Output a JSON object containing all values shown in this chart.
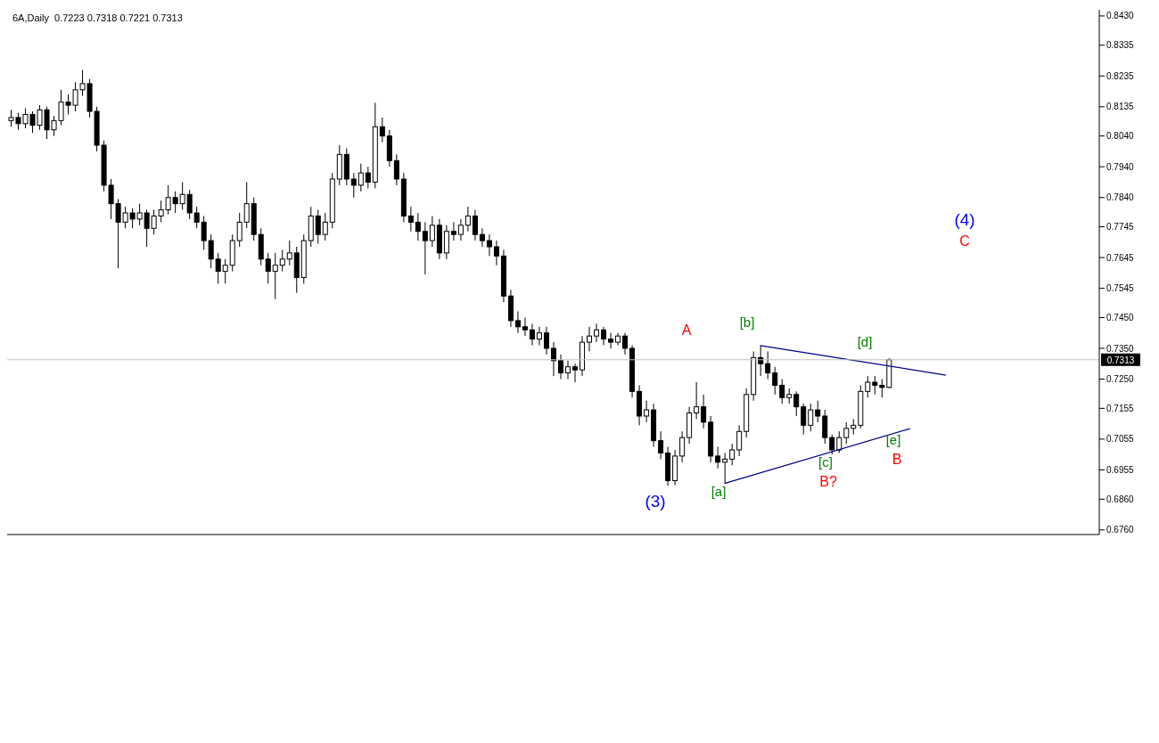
{
  "chart_data": {
    "type": "candlestick",
    "title": "6A,Daily  0.7223 0.7318 0.7221 0.7313",
    "color": "#000000",
    "categories": [
      null,
      null,
      null,
      null,
      null,
      null,
      null,
      null,
      null,
      null,
      null,
      null,
      null,
      null,
      null,
      null,
      null,
      null,
      null,
      null,
      null,
      null,
      null,
      null,
      null,
      null,
      null,
      null,
      null,
      null,
      null,
      null,
      null,
      null,
      null,
      null,
      null,
      null,
      null,
      null,
      null,
      null,
      null,
      null,
      null,
      null,
      null,
      null,
      null,
      null,
      null,
      null,
      null,
      null,
      null,
      null,
      null,
      null,
      null,
      null,
      null,
      null,
      null,
      null,
      null,
      null,
      null,
      null,
      null,
      null,
      null,
      null,
      null,
      null,
      null,
      null,
      null,
      null,
      null,
      null,
      null,
      null,
      null,
      null,
      null,
      null,
      null,
      null,
      null,
      null,
      null,
      null,
      null,
      null,
      null,
      null,
      null,
      null,
      null,
      null,
      null,
      null,
      null,
      null,
      null,
      null,
      null,
      null,
      null,
      null,
      null,
      null,
      null,
      null,
      null,
      null,
      null,
      null,
      null,
      null,
      null,
      null,
      null,
      null,
      null,
      null,
      null,
      null,
      null,
      null,
      null,
      null,
      null,
      null,
      null,
      null,
      null,
      null,
      null,
      null,
      null,
      null,
      null,
      null,
      null,
      null,
      null,
      null,
      null,
      null,
      null,
      null,
      null
    ],
    "ohlc": [
      [
        0.809,
        0.8125,
        0.807,
        0.81
      ],
      [
        0.81,
        0.8115,
        0.806,
        0.808
      ],
      [
        0.808,
        0.813,
        0.8065,
        0.811
      ],
      [
        0.811,
        0.812,
        0.805,
        0.8075
      ],
      [
        0.8075,
        0.814,
        0.806,
        0.8125
      ],
      [
        0.8125,
        0.8135,
        0.803,
        0.806
      ],
      [
        0.806,
        0.8105,
        0.804,
        0.809
      ],
      [
        0.809,
        0.819,
        0.8075,
        0.815
      ],
      [
        0.815,
        0.8175,
        0.811,
        0.814
      ],
      [
        0.814,
        0.8215,
        0.812,
        0.819
      ],
      [
        0.819,
        0.8255,
        0.817,
        0.821
      ],
      [
        0.821,
        0.8225,
        0.81,
        0.812
      ],
      [
        0.812,
        0.8135,
        0.799,
        0.801
      ],
      [
        0.801,
        0.8025,
        0.786,
        0.788
      ],
      [
        0.788,
        0.79,
        0.777,
        0.782
      ],
      [
        0.782,
        0.7835,
        0.761,
        0.776
      ],
      [
        0.776,
        0.781,
        0.774,
        0.779
      ],
      [
        0.779,
        0.7805,
        0.774,
        0.777
      ],
      [
        0.777,
        0.782,
        0.775,
        0.779
      ],
      [
        0.779,
        0.78,
        0.768,
        0.774
      ],
      [
        0.774,
        0.78,
        0.772,
        0.778
      ],
      [
        0.778,
        0.783,
        0.776,
        0.78
      ],
      [
        0.78,
        0.788,
        0.7785,
        0.784
      ],
      [
        0.784,
        0.786,
        0.779,
        0.782
      ],
      [
        0.782,
        0.789,
        0.78,
        0.785
      ],
      [
        0.785,
        0.7865,
        0.777,
        0.779
      ],
      [
        0.779,
        0.781,
        0.774,
        0.776
      ],
      [
        0.776,
        0.778,
        0.767,
        0.77
      ],
      [
        0.77,
        0.772,
        0.761,
        0.764
      ],
      [
        0.764,
        0.766,
        0.756,
        0.76
      ],
      [
        0.76,
        0.764,
        0.756,
        0.762
      ],
      [
        0.762,
        0.772,
        0.76,
        0.77
      ],
      [
        0.77,
        0.779,
        0.768,
        0.776
      ],
      [
        0.776,
        0.789,
        0.774,
        0.782
      ],
      [
        0.782,
        0.784,
        0.77,
        0.772
      ],
      [
        0.772,
        0.774,
        0.762,
        0.764
      ],
      [
        0.764,
        0.766,
        0.756,
        0.76
      ],
      [
        0.76,
        0.766,
        0.751,
        0.762
      ],
      [
        0.762,
        0.767,
        0.76,
        0.764
      ],
      [
        0.764,
        0.77,
        0.762,
        0.766
      ],
      [
        0.766,
        0.768,
        0.753,
        0.758
      ],
      [
        0.758,
        0.772,
        0.756,
        0.77
      ],
      [
        0.77,
        0.781,
        0.768,
        0.778
      ],
      [
        0.778,
        0.78,
        0.769,
        0.772
      ],
      [
        0.772,
        0.779,
        0.77,
        0.776
      ],
      [
        0.776,
        0.792,
        0.774,
        0.79
      ],
      [
        0.79,
        0.801,
        0.788,
        0.798
      ],
      [
        0.798,
        0.8,
        0.788,
        0.79
      ],
      [
        0.79,
        0.792,
        0.784,
        0.788
      ],
      [
        0.788,
        0.795,
        0.786,
        0.792
      ],
      [
        0.792,
        0.794,
        0.787,
        0.789
      ],
      [
        0.789,
        0.8148,
        0.787,
        0.807
      ],
      [
        0.807,
        0.81,
        0.802,
        0.804
      ],
      [
        0.804,
        0.806,
        0.794,
        0.796
      ],
      [
        0.796,
        0.798,
        0.788,
        0.79
      ],
      [
        0.79,
        0.792,
        0.776,
        0.778
      ],
      [
        0.778,
        0.781,
        0.773,
        0.776
      ],
      [
        0.776,
        0.779,
        0.77,
        0.773
      ],
      [
        0.773,
        0.776,
        0.759,
        0.77
      ],
      [
        0.77,
        0.778,
        0.768,
        0.775
      ],
      [
        0.775,
        0.777,
        0.764,
        0.766
      ],
      [
        0.766,
        0.775,
        0.764,
        0.773
      ],
      [
        0.773,
        0.776,
        0.77,
        0.772
      ],
      [
        0.772,
        0.777,
        0.77,
        0.775
      ],
      [
        0.775,
        0.781,
        0.773,
        0.778
      ],
      [
        0.778,
        0.78,
        0.77,
        0.772
      ],
      [
        0.772,
        0.774,
        0.768,
        0.77
      ],
      [
        0.77,
        0.772,
        0.765,
        0.768
      ],
      [
        0.768,
        0.77,
        0.762,
        0.765
      ],
      [
        0.765,
        0.767,
        0.75,
        0.752
      ],
      [
        0.752,
        0.754,
        0.742,
        0.744
      ],
      [
        0.744,
        0.747,
        0.74,
        0.742
      ],
      [
        0.742,
        0.745,
        0.739,
        0.741
      ],
      [
        0.741,
        0.743,
        0.736,
        0.738
      ],
      [
        0.738,
        0.742,
        0.736,
        0.74
      ],
      [
        0.74,
        0.742,
        0.733,
        0.735
      ],
      [
        0.735,
        0.737,
        0.726,
        0.731
      ],
      [
        0.731,
        0.733,
        0.725,
        0.727
      ],
      [
        0.727,
        0.731,
        0.725,
        0.729
      ],
      [
        0.729,
        0.73,
        0.724,
        0.728
      ],
      [
        0.728,
        0.739,
        0.726,
        0.737
      ],
      [
        0.737,
        0.742,
        0.734,
        0.739
      ],
      [
        0.739,
        0.743,
        0.737,
        0.741
      ],
      [
        0.741,
        0.742,
        0.736,
        0.738
      ],
      [
        0.738,
        0.74,
        0.735,
        0.737
      ],
      [
        0.737,
        0.74,
        0.736,
        0.739
      ],
      [
        0.739,
        0.74,
        0.733,
        0.735
      ],
      [
        0.735,
        0.736,
        0.719,
        0.721
      ],
      [
        0.721,
        0.723,
        0.71,
        0.713
      ],
      [
        0.713,
        0.718,
        0.711,
        0.715
      ],
      [
        0.715,
        0.717,
        0.703,
        0.705
      ],
      [
        0.705,
        0.708,
        0.699,
        0.701
      ],
      [
        0.701,
        0.703,
        0.6903,
        0.692
      ],
      [
        0.692,
        0.702,
        0.6905,
        0.7
      ],
      [
        0.7,
        0.708,
        0.698,
        0.706
      ],
      [
        0.706,
        0.716,
        0.704,
        0.714
      ],
      [
        0.714,
        0.724,
        0.712,
        0.716
      ],
      [
        0.716,
        0.72,
        0.709,
        0.711
      ],
      [
        0.711,
        0.713,
        0.698,
        0.7
      ],
      [
        0.7,
        0.703,
        0.696,
        0.698
      ],
      [
        0.698,
        0.701,
        0.6911,
        0.699
      ],
      [
        0.699,
        0.704,
        0.697,
        0.702
      ],
      [
        0.702,
        0.71,
        0.7,
        0.708
      ],
      [
        0.708,
        0.722,
        0.706,
        0.72
      ],
      [
        0.72,
        0.734,
        0.718,
        0.732
      ],
      [
        0.732,
        0.7359,
        0.726,
        0.73
      ],
      [
        0.73,
        0.734,
        0.725,
        0.727
      ],
      [
        0.727,
        0.729,
        0.72,
        0.723
      ],
      [
        0.723,
        0.725,
        0.717,
        0.719
      ],
      [
        0.719,
        0.722,
        0.717,
        0.72
      ],
      [
        0.72,
        0.721,
        0.713,
        0.716
      ],
      [
        0.716,
        0.717,
        0.707,
        0.71
      ],
      [
        0.71,
        0.717,
        0.708,
        0.715
      ],
      [
        0.715,
        0.718,
        0.711,
        0.713
      ],
      [
        0.713,
        0.715,
        0.704,
        0.706
      ],
      [
        0.706,
        0.707,
        0.7005,
        0.702
      ],
      [
        0.702,
        0.708,
        0.701,
        0.706
      ],
      [
        0.706,
        0.711,
        0.704,
        0.709
      ],
      [
        0.709,
        0.712,
        0.707,
        0.71
      ],
      [
        0.71,
        0.723,
        0.709,
        0.721
      ],
      [
        0.721,
        0.726,
        0.719,
        0.724
      ],
      [
        0.724,
        0.726,
        0.72,
        0.723
      ],
      [
        0.723,
        0.725,
        0.719,
        0.7223
      ],
      [
        0.7223,
        0.7318,
        0.7221,
        0.7313
      ],
      null,
      null,
      null,
      null,
      null,
      null,
      null,
      null,
      null,
      null,
      null,
      null,
      null,
      null,
      null,
      null,
      null,
      null,
      null,
      null,
      null,
      null,
      null,
      null,
      null,
      null,
      null,
      null,
      null
    ],
    "series": [
      {
        "type": "line",
        "color": "#00008b",
        "values": [
          null,
          null,
          null,
          null,
          null,
          null,
          null,
          null,
          null,
          null,
          null,
          null,
          null,
          null,
          null,
          null,
          null,
          null,
          null,
          null,
          null,
          null,
          null,
          null,
          null,
          null,
          null,
          null,
          null,
          null,
          null,
          null,
          null,
          null,
          null,
          null,
          null,
          null,
          null,
          null,
          null,
          null,
          null,
          null,
          null,
          null,
          null,
          null,
          null,
          null,
          null,
          null,
          null,
          null,
          null,
          null,
          null,
          null,
          null,
          null,
          null,
          null,
          null,
          null,
          null,
          null,
          null,
          null,
          null,
          null,
          null,
          null,
          null,
          null,
          null,
          null,
          null,
          null,
          null,
          null,
          null,
          null,
          null,
          null,
          null,
          null,
          null,
          null,
          null,
          null,
          null,
          null,
          null,
          null,
          null,
          null,
          null,
          null,
          null,
          null,
          null,
          null,
          null,
          null,
          null,
          0.7359,
          null,
          null,
          null,
          null,
          null,
          null,
          null,
          null,
          null,
          null,
          null,
          null,
          null,
          null,
          null,
          null,
          null,
          null,
          null,
          null,
          null,
          null,
          null,
          null,
          null,
          0.7263,
          null,
          null,
          null,
          null,
          null,
          null,
          null,
          null,
          null,
          null,
          null,
          null,
          null,
          null,
          null,
          null,
          null,
          null,
          null,
          null,
          null
        ]
      },
      {
        "type": "line",
        "color": "#00008b",
        "values": [
          null,
          null,
          null,
          null,
          null,
          null,
          null,
          null,
          null,
          null,
          null,
          null,
          null,
          null,
          null,
          null,
          null,
          null,
          null,
          null,
          null,
          null,
          null,
          null,
          null,
          null,
          null,
          null,
          null,
          null,
          null,
          null,
          null,
          null,
          null,
          null,
          null,
          null,
          null,
          null,
          null,
          null,
          null,
          null,
          null,
          null,
          null,
          null,
          null,
          null,
          null,
          null,
          null,
          null,
          null,
          null,
          null,
          null,
          null,
          null,
          null,
          null,
          null,
          null,
          null,
          null,
          null,
          null,
          null,
          null,
          null,
          null,
          null,
          null,
          null,
          null,
          null,
          null,
          null,
          null,
          null,
          null,
          null,
          null,
          null,
          null,
          null,
          null,
          null,
          null,
          null,
          null,
          null,
          null,
          null,
          null,
          null,
          null,
          null,
          null,
          0.6911,
          null,
          null,
          null,
          null,
          null,
          null,
          null,
          null,
          null,
          null,
          null,
          null,
          null,
          null,
          null,
          null,
          null,
          null,
          null,
          null,
          null,
          null,
          null,
          null,
          null,
          0.7089,
          null,
          null,
          null,
          null,
          null,
          null,
          null,
          null,
          null,
          null,
          null,
          null,
          null,
          null,
          null,
          null,
          null,
          null,
          null,
          null,
          null,
          null,
          null,
          null,
          null,
          null
        ]
      }
    ],
    "ylim": [
      0.6745,
      0.845
    ],
    "yticks": [
      {
        "value": 0.843,
        "label": "0.8430"
      },
      {
        "value": 0.8335,
        "label": "0.8335"
      },
      {
        "value": 0.8235,
        "label": "0.8235"
      },
      {
        "value": 0.8135,
        "label": "0.8135"
      },
      {
        "value": 0.804,
        "label": "0.8040"
      },
      {
        "value": 0.794,
        "label": "0.7940"
      },
      {
        "value": 0.784,
        "label": "0.7840"
      },
      {
        "value": 0.7745,
        "label": "0.7745"
      },
      {
        "value": 0.7645,
        "label": "0.7645"
      },
      {
        "value": 0.7545,
        "label": "0.7545"
      },
      {
        "value": 0.745,
        "label": "0.7450"
      },
      {
        "value": 0.735,
        "label": "0.7350"
      },
      {
        "value": 0.725,
        "label": "0.7250"
      },
      {
        "value": 0.7155,
        "label": "0.7155"
      },
      {
        "value": 0.7055,
        "label": "0.7055"
      },
      {
        "value": 0.6955,
        "label": "0.6955"
      },
      {
        "value": 0.686,
        "label": "0.6860"
      },
      {
        "value": 0.676,
        "label": "0.6760"
      }
    ],
    "tick_labels": "y",
    "ref_lines": [
      {
        "axis": "y",
        "value": 0.7313,
        "label": "0.7313",
        "color": "#c0c0c0"
      }
    ],
    "annotations": [
      "(3)",
      "A",
      "[a]",
      "[b]",
      "[c]",
      "B?",
      "[d]",
      "[e]",
      "B",
      "(4)",
      "C"
    ]
  }
}
